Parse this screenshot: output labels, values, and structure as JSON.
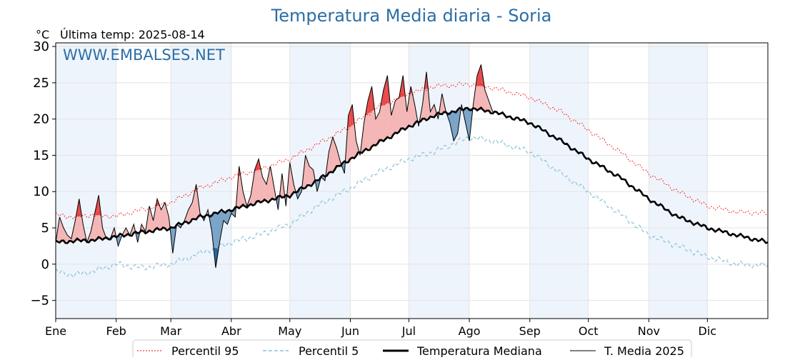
{
  "title": "Temperatura Media diaria - Soria",
  "unit_label": "°C",
  "last_temp_label": "Última temp: 2025-08-14",
  "watermark": "WWW.EMBALSES.NET",
  "colors": {
    "title": "#2b6ea5",
    "watermark": "#2b6ea5",
    "p95": "#ff0000",
    "p5": "#8cc4d8",
    "median": "#000000",
    "current": "#000000",
    "above_median_fill": "#f4b6b6",
    "above_p95_fill": "#e84040",
    "below_median_fill": "#7aa4c8",
    "below_p5_fill": "#1f5fa0",
    "month_band": "#eef4fb"
  },
  "chart_data": {
    "type": "line",
    "xlabel": "",
    "ylabel": "°C",
    "ylim": [
      -7.5,
      30.5
    ],
    "yticks": [
      -5,
      0,
      5,
      10,
      15,
      20,
      25,
      30
    ],
    "x_unit": "day_of_year",
    "xlim": [
      1,
      366
    ],
    "month_ticks": [
      {
        "label": "Ene",
        "day": 1
      },
      {
        "label": "Feb",
        "day": 32
      },
      {
        "label": "Mar",
        "day": 60
      },
      {
        "label": "Abr",
        "day": 91
      },
      {
        "label": "May",
        "day": 121
      },
      {
        "label": "Jun",
        "day": 152
      },
      {
        "label": "Jul",
        "day": 182
      },
      {
        "label": "Ago",
        "day": 213
      },
      {
        "label": "Sep",
        "day": 244
      },
      {
        "label": "Oct",
        "day": 274
      },
      {
        "label": "Nov",
        "day": 305
      },
      {
        "label": "Dic",
        "day": 335
      }
    ],
    "grid": true,
    "legend_position": "bottom",
    "series": [
      {
        "name": "Percentil 95",
        "style": "dashed-red",
        "x": [
          1,
          10,
          20,
          32,
          45,
          60,
          75,
          91,
          105,
          121,
          135,
          152,
          165,
          182,
          195,
          213,
          225,
          244,
          260,
          274,
          290,
          305,
          320,
          335,
          350,
          366
        ],
        "values": [
          6.8,
          6.5,
          6.8,
          6.6,
          7.5,
          8.5,
          10.5,
          12.0,
          13.0,
          14.5,
          16.5,
          19.0,
          21.5,
          23.5,
          24.5,
          24.8,
          24.3,
          23.0,
          21.0,
          18.5,
          15.5,
          12.5,
          10.0,
          8.0,
          7.2,
          7.0
        ]
      },
      {
        "name": "Percentil 5",
        "style": "dashed-lightblue",
        "x": [
          1,
          10,
          20,
          32,
          45,
          60,
          75,
          91,
          105,
          121,
          135,
          152,
          165,
          182,
          195,
          213,
          225,
          244,
          260,
          274,
          290,
          305,
          320,
          335,
          350,
          366
        ],
        "values": [
          -1.0,
          -1.5,
          -1.0,
          0.0,
          -0.5,
          0.0,
          1.5,
          3.0,
          4.0,
          5.5,
          8.0,
          10.5,
          12.5,
          14.5,
          15.5,
          17.5,
          17.0,
          15.5,
          12.5,
          10.0,
          7.0,
          4.0,
          2.5,
          1.0,
          0.0,
          -0.2
        ]
      },
      {
        "name": "Temperatura Mediana",
        "style": "thick-black",
        "x": [
          1,
          10,
          20,
          32,
          45,
          60,
          75,
          91,
          105,
          121,
          135,
          152,
          165,
          182,
          195,
          213,
          225,
          244,
          260,
          274,
          290,
          305,
          320,
          335,
          350,
          366
        ],
        "values": [
          3.0,
          3.2,
          3.3,
          3.8,
          4.4,
          5.0,
          6.5,
          7.5,
          8.5,
          9.5,
          11.5,
          14.5,
          16.5,
          19.0,
          20.5,
          21.5,
          21.0,
          19.5,
          17.0,
          14.5,
          12.0,
          9.0,
          6.5,
          5.0,
          4.0,
          3.0
        ]
      },
      {
        "name": "T. Media 2025",
        "style": "thin-black",
        "x": [
          1,
          3,
          5,
          7,
          9,
          11,
          13,
          15,
          17,
          19,
          21,
          23,
          25,
          27,
          29,
          31,
          33,
          35,
          37,
          39,
          41,
          43,
          45,
          47,
          49,
          51,
          53,
          55,
          57,
          59,
          61,
          63,
          65,
          67,
          69,
          71,
          73,
          75,
          77,
          79,
          81,
          83,
          85,
          87,
          89,
          91,
          93,
          95,
          97,
          99,
          101,
          103,
          105,
          107,
          109,
          111,
          113,
          115,
          117,
          119,
          121,
          123,
          125,
          127,
          129,
          131,
          133,
          135,
          137,
          139,
          141,
          143,
          145,
          147,
          149,
          151,
          153,
          155,
          157,
          159,
          161,
          163,
          165,
          167,
          169,
          171,
          173,
          175,
          177,
          179,
          181,
          183,
          185,
          187,
          189,
          191,
          193,
          195,
          197,
          199,
          201,
          203,
          205,
          207,
          209,
          211,
          213,
          215,
          217,
          219,
          221,
          223,
          225,
          226
        ],
        "values": [
          3.0,
          6.5,
          5.0,
          4.0,
          3.5,
          6.0,
          9.0,
          5.5,
          3.0,
          4.5,
          7.0,
          9.5,
          5.0,
          3.5,
          3.5,
          5.0,
          2.5,
          4.0,
          5.0,
          4.0,
          5.5,
          3.0,
          5.5,
          4.5,
          8.0,
          6.0,
          9.0,
          7.5,
          8.5,
          6.5,
          1.5,
          5.5,
          5.0,
          6.0,
          7.5,
          8.5,
          11.0,
          7.0,
          6.0,
          7.5,
          4.5,
          -0.5,
          3.0,
          6.0,
          5.5,
          7.0,
          6.5,
          13.5,
          10.0,
          8.0,
          9.5,
          13.0,
          14.5,
          12.0,
          11.0,
          13.5,
          10.5,
          7.5,
          12.5,
          8.0,
          14.0,
          11.0,
          9.0,
          10.0,
          15.0,
          13.5,
          13.0,
          10.0,
          12.0,
          11.5,
          15.5,
          17.5,
          16.0,
          14.0,
          12.5,
          20.5,
          22.0,
          17.0,
          15.0,
          19.5,
          22.5,
          24.5,
          20.0,
          21.0,
          24.0,
          26.0,
          20.5,
          22.5,
          23.0,
          26.0,
          21.0,
          24.5,
          22.0,
          19.0,
          22.0,
          26.5,
          21.0,
          22.0,
          20.0,
          23.5,
          21.0,
          19.5,
          17.0,
          18.0,
          22.0,
          19.5,
          17.0,
          22.0,
          26.0,
          27.5,
          24.0,
          22.5,
          21.0,
          21.0
        ]
      }
    ]
  },
  "legend": {
    "p95": "Percentil 95",
    "p5": "Percentil 5",
    "median": "Temperatura Mediana",
    "current": "T. Media 2025"
  }
}
